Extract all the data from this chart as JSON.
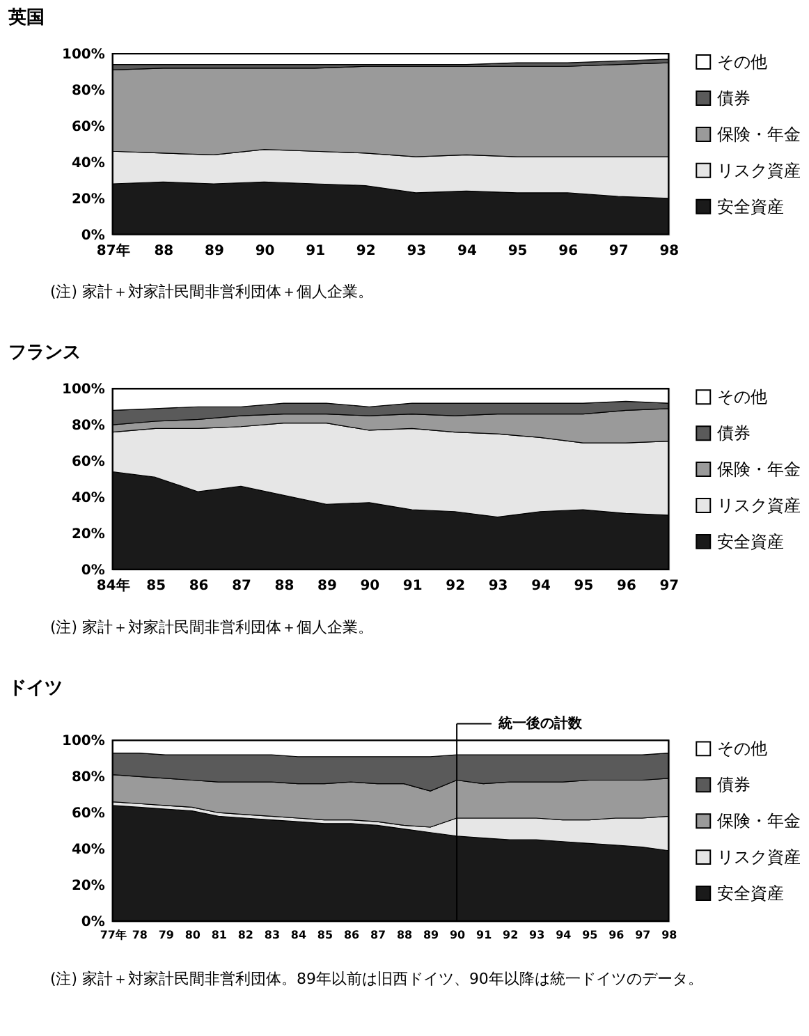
{
  "chart_data": [
    {
      "type": "area",
      "stacked": true,
      "title": "英国",
      "categories": [
        "87年",
        "88",
        "89",
        "90",
        "91",
        "92",
        "93",
        "94",
        "95",
        "96",
        "97",
        "98"
      ],
      "series": [
        {
          "name": "安全資産",
          "color": "#1a1a1a",
          "values": [
            28,
            29,
            28,
            29,
            28,
            27,
            23,
            24,
            23,
            23,
            21,
            20
          ]
        },
        {
          "name": "リスク資産",
          "color": "#e6e6e6",
          "values": [
            18,
            16,
            16,
            18,
            18,
            18,
            20,
            20,
            20,
            20,
            22,
            23
          ]
        },
        {
          "name": "保険・年金",
          "color": "#9a9a9a",
          "values": [
            45,
            47,
            48,
            45,
            46,
            48,
            50,
            49,
            50,
            50,
            51,
            52
          ]
        },
        {
          "name": "債券",
          "color": "#5a5a5a",
          "values": [
            3,
            2,
            2,
            2,
            2,
            1,
            1,
            1,
            2,
            2,
            2,
            2
          ]
        },
        {
          "name": "その他",
          "color": "#ffffff",
          "values": [
            6,
            6,
            6,
            6,
            6,
            6,
            6,
            6,
            5,
            5,
            4,
            3
          ]
        }
      ],
      "ylim": [
        0,
        100
      ],
      "yticks": [
        {
          "value": 0,
          "label": "0%"
        },
        {
          "value": 20,
          "label": "20%"
        },
        {
          "value": 40,
          "label": "40%"
        },
        {
          "value": 60,
          "label": "60%"
        },
        {
          "value": 80,
          "label": "80%"
        },
        {
          "value": 100,
          "label": "100%"
        }
      ],
      "grid": false,
      "legend": "right",
      "annotations": [
        "(注) 家計＋対家計民間非営利団体＋個人企業。"
      ]
    },
    {
      "type": "area",
      "stacked": true,
      "title": "フランス",
      "categories": [
        "84年",
        "85",
        "86",
        "87",
        "88",
        "89",
        "90",
        "91",
        "92",
        "93",
        "94",
        "95",
        "96",
        "97"
      ],
      "series": [
        {
          "name": "安全資産",
          "color": "#1a1a1a",
          "values": [
            54,
            51,
            43,
            46,
            41,
            36,
            37,
            33,
            32,
            29,
            32,
            33,
            31,
            30
          ]
        },
        {
          "name": "リスク資産",
          "color": "#e6e6e6",
          "values": [
            22,
            27,
            35,
            33,
            40,
            45,
            40,
            45,
            44,
            46,
            41,
            37,
            39,
            41
          ]
        },
        {
          "name": "保険・年金",
          "color": "#9a9a9a",
          "values": [
            4,
            4,
            5,
            6,
            5,
            5,
            8,
            8,
            9,
            11,
            13,
            16,
            18,
            18
          ]
        },
        {
          "name": "債券",
          "color": "#5a5a5a",
          "values": [
            8,
            7,
            7,
            5,
            6,
            6,
            5,
            6,
            7,
            6,
            6,
            6,
            5,
            3
          ]
        },
        {
          "name": "その他",
          "color": "#ffffff",
          "values": [
            12,
            11,
            10,
            10,
            8,
            8,
            10,
            8,
            8,
            8,
            8,
            8,
            7,
            8
          ]
        }
      ],
      "ylim": [
        0,
        100
      ],
      "yticks": [
        {
          "value": 0,
          "label": "0%"
        },
        {
          "value": 20,
          "label": "20%"
        },
        {
          "value": 40,
          "label": "40%"
        },
        {
          "value": 60,
          "label": "60%"
        },
        {
          "value": 80,
          "label": "80%"
        },
        {
          "value": 100,
          "label": "100%"
        }
      ],
      "grid": false,
      "legend": "right",
      "annotations": [
        "(注) 家計＋対家計民間非営利団体＋個人企業。"
      ]
    },
    {
      "type": "area",
      "stacked": true,
      "title": "ドイツ",
      "categories": [
        "77年",
        "78",
        "79",
        "80",
        "81",
        "82",
        "83",
        "84",
        "85",
        "86",
        "87",
        "88",
        "89",
        "90",
        "91",
        "92",
        "93",
        "94",
        "95",
        "96",
        "97",
        "98"
      ],
      "series": [
        {
          "name": "安全資産",
          "color": "#1a1a1a",
          "values": [
            64,
            63,
            62,
            61,
            58,
            57,
            56,
            55,
            54,
            54,
            53,
            51,
            49,
            47,
            46,
            45,
            45,
            44,
            43,
            42,
            41,
            39
          ]
        },
        {
          "name": "リスク資産",
          "color": "#e6e6e6",
          "values": [
            2,
            2,
            2,
            2,
            2,
            2,
            2,
            2,
            2,
            2,
            2,
            2,
            3,
            10,
            11,
            12,
            12,
            12,
            13,
            15,
            16,
            19
          ]
        },
        {
          "name": "保険・年金",
          "color": "#9a9a9a",
          "values": [
            15,
            15,
            15,
            15,
            17,
            18,
            19,
            19,
            20,
            21,
            21,
            23,
            20,
            21,
            19,
            20,
            20,
            21,
            22,
            21,
            21,
            21
          ]
        },
        {
          "name": "債券",
          "color": "#5a5a5a",
          "values": [
            12,
            13,
            13,
            14,
            15,
            15,
            15,
            15,
            15,
            14,
            15,
            15,
            19,
            14,
            16,
            15,
            15,
            15,
            14,
            14,
            14,
            14
          ]
        },
        {
          "name": "その他",
          "color": "#ffffff",
          "values": [
            7,
            7,
            8,
            8,
            8,
            8,
            8,
            9,
            9,
            9,
            9,
            9,
            9,
            8,
            8,
            8,
            8,
            8,
            8,
            8,
            8,
            7
          ]
        }
      ],
      "ylim": [
        0,
        100
      ],
      "yticks": [
        {
          "value": 0,
          "label": "0%"
        },
        {
          "value": 20,
          "label": "20%"
        },
        {
          "value": 40,
          "label": "40%"
        },
        {
          "value": 60,
          "label": "60%"
        },
        {
          "value": 80,
          "label": "80%"
        },
        {
          "value": 100,
          "label": "100%"
        }
      ],
      "ref_lines": [
        {
          "axis": "x",
          "value": "90",
          "label": "統一後の計数"
        }
      ],
      "grid": false,
      "legend": "right",
      "annotations": [
        "(注) 家計＋対家計民間非営利団体。89年以前は旧西ドイツ、90年以降は統一ドイツのデータ。"
      ]
    }
  ]
}
